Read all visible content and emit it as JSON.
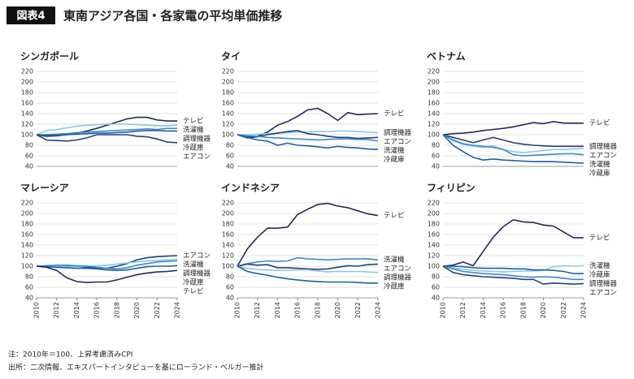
{
  "header": {
    "badge": "図表4",
    "title": "東南アジア各国・各家電の平均単価推移"
  },
  "chart_data": [
    {
      "type": "line",
      "title": "シンガポール",
      "x": [
        2010,
        2011,
        2012,
        2013,
        2014,
        2015,
        2016,
        2017,
        2018,
        2019,
        2020,
        2021,
        2022,
        2023,
        2024
      ],
      "xlim": [
        2010,
        2024
      ],
      "ylim": [
        40,
        220
      ],
      "yticks": [
        40,
        60,
        80,
        100,
        120,
        140,
        160,
        180,
        200,
        220
      ],
      "grid": true,
      "series": [
        {
          "name": "テレビ",
          "color": "#202c5c",
          "values": [
            100,
            97,
            98,
            100,
            103,
            107,
            112,
            118,
            124,
            130,
            133,
            133,
            128,
            126,
            126
          ]
        },
        {
          "name": "洗濯機",
          "color": "#8ec6ec",
          "values": [
            100,
            108,
            110,
            113,
            116,
            118,
            119,
            120,
            120,
            120,
            119,
            118,
            117,
            117,
            118
          ]
        },
        {
          "name": "調理機器",
          "color": "#3a8ad0",
          "values": [
            100,
            100,
            101,
            102,
            104,
            105,
            106,
            107,
            108,
            109,
            110,
            111,
            110,
            112,
            112
          ]
        },
        {
          "name": "冷蔵庫",
          "color": "#1f5fa6",
          "values": [
            100,
            99,
            99,
            100,
            101,
            102,
            103,
            103,
            104,
            105,
            107,
            108,
            108,
            107,
            107
          ]
        },
        {
          "name": "エアコン",
          "color": "#2a3f78",
          "values": [
            100,
            90,
            89,
            88,
            90,
            94,
            100,
            100,
            100,
            100,
            97,
            96,
            92,
            86,
            85
          ]
        }
      ]
    },
    {
      "type": "line",
      "title": "タイ",
      "x": [
        2010,
        2011,
        2012,
        2013,
        2014,
        2015,
        2016,
        2017,
        2018,
        2019,
        2020,
        2021,
        2022,
        2023,
        2024
      ],
      "xlim": [
        2010,
        2024
      ],
      "ylim": [
        40,
        220
      ],
      "yticks": [
        40,
        60,
        80,
        100,
        120,
        140,
        160,
        180,
        200,
        220
      ],
      "grid": true,
      "series": [
        {
          "name": "テレビ",
          "color": "#202c5c",
          "values": [
            100,
            96,
            97,
            105,
            118,
            125,
            135,
            147,
            150,
            140,
            127,
            142,
            138,
            139,
            140
          ]
        },
        {
          "name": "調理機器",
          "color": "#8ec6ec",
          "values": [
            100,
            100,
            101,
            102,
            103,
            104,
            105,
            105,
            106,
            106,
            107,
            107,
            106,
            105,
            104
          ]
        },
        {
          "name": "エアコン",
          "color": "#2a3f78",
          "values": [
            100,
            94,
            96,
            100,
            103,
            106,
            108,
            102,
            100,
            97,
            95,
            95,
            93,
            94,
            95
          ]
        },
        {
          "name": "洗濯機",
          "color": "#3a8ad0",
          "values": [
            100,
            98,
            97,
            95,
            94,
            93,
            92,
            91,
            90,
            91,
            92,
            92,
            91,
            91,
            88
          ]
        },
        {
          "name": "冷蔵庫",
          "color": "#1f5fa6",
          "values": [
            100,
            95,
            90,
            88,
            80,
            84,
            80,
            79,
            77,
            75,
            78,
            76,
            75,
            73,
            72
          ]
        }
      ]
    },
    {
      "type": "line",
      "title": "ベトナム",
      "x": [
        2010,
        2011,
        2012,
        2013,
        2014,
        2015,
        2016,
        2017,
        2018,
        2019,
        2020,
        2021,
        2022,
        2023,
        2024
      ],
      "xlim": [
        2010,
        2024
      ],
      "ylim": [
        40,
        220
      ],
      "yticks": [
        40,
        60,
        80,
        100,
        120,
        140,
        160,
        180,
        200,
        220
      ],
      "grid": true,
      "series": [
        {
          "name": "テレビ",
          "color": "#202c5c",
          "values": [
            100,
            102,
            103,
            105,
            108,
            110,
            112,
            115,
            119,
            123,
            121,
            125,
            122,
            122,
            122
          ]
        },
        {
          "name": "調理機器",
          "color": "#2a3f78",
          "values": [
            100,
            95,
            90,
            85,
            90,
            95,
            90,
            85,
            82,
            80,
            79,
            78,
            78,
            78,
            78
          ]
        },
        {
          "name": "エアコン",
          "color": "#8ec6ec",
          "values": [
            100,
            88,
            82,
            78,
            76,
            79,
            72,
            68,
            66,
            68,
            70,
            72,
            72,
            73,
            74
          ]
        },
        {
          "name": "洗濯機",
          "color": "#3a8ad0",
          "values": [
            100,
            90,
            83,
            80,
            78,
            76,
            72,
            62,
            60,
            61,
            62,
            63,
            64,
            64,
            62
          ]
        },
        {
          "name": "冷蔵庫",
          "color": "#1f5fa6",
          "values": [
            100,
            80,
            68,
            57,
            52,
            54,
            52,
            51,
            50,
            49,
            49,
            49,
            48,
            47,
            46
          ]
        }
      ]
    },
    {
      "type": "line",
      "title": "マレーシア",
      "x": [
        2010,
        2011,
        2012,
        2013,
        2014,
        2015,
        2016,
        2017,
        2018,
        2019,
        2020,
        2021,
        2022,
        2023,
        2024
      ],
      "xlim": [
        2010,
        2024
      ],
      "xticks": [
        2010,
        2012,
        2014,
        2016,
        2018,
        2020,
        2022,
        2024
      ],
      "ylim": [
        40,
        220
      ],
      "yticks": [
        40,
        60,
        80,
        100,
        120,
        140,
        160,
        180,
        200,
        220
      ],
      "grid": true,
      "series": [
        {
          "name": "エアコン",
          "color": "#2a3f78",
          "values": [
            100,
            100,
            101,
            101,
            100,
            98,
            97,
            96,
            100,
            105,
            112,
            116,
            118,
            119,
            120
          ]
        },
        {
          "name": "洗濯機",
          "color": "#8ec6ec",
          "values": [
            100,
            101,
            100,
            99,
            99,
            100,
            101,
            102,
            104,
            106,
            108,
            110,
            111,
            112,
            113
          ]
        },
        {
          "name": "調理機器",
          "color": "#3a8ad0",
          "values": [
            100,
            101,
            102,
            102,
            101,
            100,
            98,
            96,
            95,
            97,
            102,
            105,
            108,
            109,
            110
          ]
        },
        {
          "name": "冷蔵庫",
          "color": "#1f5fa6",
          "values": [
            100,
            99,
            98,
            97,
            96,
            96,
            95,
            93,
            92,
            93,
            96,
            99,
            100,
            100,
            101
          ]
        },
        {
          "name": "テレビ",
          "color": "#202c5c",
          "values": [
            100,
            98,
            92,
            78,
            71,
            69,
            70,
            70,
            74,
            79,
            84,
            87,
            89,
            90,
            92
          ]
        }
      ]
    },
    {
      "type": "line",
      "title": "インドネシア",
      "x": [
        2010,
        2011,
        2012,
        2013,
        2014,
        2015,
        2016,
        2017,
        2018,
        2019,
        2020,
        2021,
        2022,
        2023,
        2024
      ],
      "xlim": [
        2010,
        2024
      ],
      "xticks": [
        2010,
        2012,
        2014,
        2016,
        2018,
        2020,
        2022,
        2024
      ],
      "ylim": [
        40,
        220
      ],
      "yticks": [
        40,
        60,
        80,
        100,
        120,
        140,
        160,
        180,
        200,
        220
      ],
      "grid": true,
      "series": [
        {
          "name": "テレビ",
          "color": "#202c5c",
          "values": [
            100,
            133,
            155,
            172,
            172,
            174,
            198,
            208,
            217,
            219,
            214,
            211,
            205,
            199,
            196
          ]
        },
        {
          "name": "洗濯機",
          "color": "#3a8ad0",
          "values": [
            100,
            105,
            108,
            110,
            109,
            110,
            116,
            114,
            113,
            112,
            113,
            114,
            114,
            114,
            112
          ]
        },
        {
          "name": "エアコン",
          "color": "#2a3f78",
          "values": [
            100,
            104,
            102,
            103,
            97,
            97,
            96,
            95,
            94,
            95,
            98,
            101,
            100,
            103,
            104
          ]
        },
        {
          "name": "調理機器",
          "color": "#8ec6ec",
          "values": [
            100,
            96,
            94,
            93,
            92,
            92,
            93,
            93,
            91,
            89,
            90,
            90,
            90,
            89,
            88
          ]
        },
        {
          "name": "冷蔵庫",
          "color": "#1f5fa6",
          "values": [
            100,
            90,
            86,
            83,
            79,
            76,
            74,
            72,
            71,
            70,
            70,
            70,
            69,
            68,
            68
          ]
        }
      ]
    },
    {
      "type": "line",
      "title": "フィリピン",
      "x": [
        2010,
        2011,
        2012,
        2013,
        2014,
        2015,
        2016,
        2017,
        2018,
        2019,
        2020,
        2021,
        2022,
        2023,
        2024
      ],
      "xlim": [
        2010,
        2024
      ],
      "xticks": [
        2010,
        2012,
        2014,
        2016,
        2018,
        2020,
        2022,
        2024
      ],
      "ylim": [
        40,
        220
      ],
      "yticks": [
        40,
        60,
        80,
        100,
        120,
        140,
        160,
        180,
        200,
        220
      ],
      "grid": true,
      "series": [
        {
          "name": "テレビ",
          "color": "#202c5c",
          "values": [
            100,
            102,
            108,
            101,
            128,
            155,
            175,
            188,
            184,
            183,
            178,
            176,
            165,
            154,
            154
          ]
        },
        {
          "name": "洗濯機",
          "color": "#8ec6ec",
          "values": [
            100,
            97,
            94,
            92,
            91,
            90,
            89,
            90,
            91,
            91,
            92,
            99,
            101,
            100,
            101
          ]
        },
        {
          "name": "冷蔵庫",
          "color": "#1f5fa6",
          "values": [
            100,
            100,
            99,
            97,
            96,
            96,
            96,
            95,
            95,
            93,
            93,
            92,
            90,
            86,
            86
          ]
        },
        {
          "name": "調理機器",
          "color": "#3a8ad0",
          "values": [
            100,
            95,
            90,
            88,
            86,
            85,
            84,
            82,
            80,
            79,
            80,
            79,
            77,
            75,
            75
          ]
        },
        {
          "name": "エアコン",
          "color": "#2a3f78",
          "values": [
            100,
            88,
            84,
            82,
            80,
            79,
            78,
            77,
            75,
            75,
            66,
            68,
            67,
            66,
            67
          ]
        }
      ]
    }
  ],
  "notes": [
    "注：2010年＝100、上昇考慮済みCPI",
    "出所：二次情報、エキスパートインタビューを基にローランド・ベルガー推計"
  ]
}
